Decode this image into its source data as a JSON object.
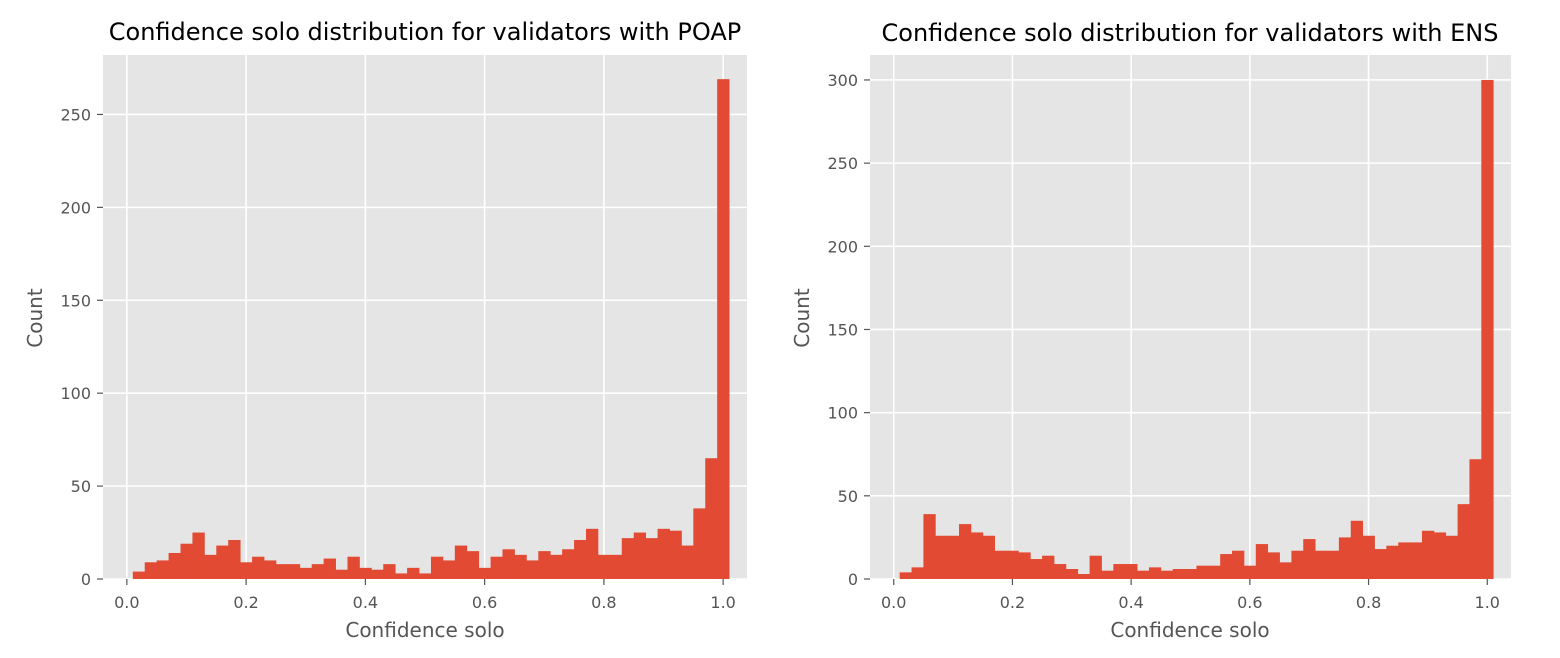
{
  "chart_data": [
    {
      "type": "bar",
      "title": "Confidence solo distribution for validators with POAP",
      "xlabel": "Confidence solo",
      "ylabel": "Count",
      "xlim": [
        -0.04,
        1.04
      ],
      "ylim": [
        0,
        282
      ],
      "xticks": [
        0.0,
        0.2,
        0.4,
        0.6,
        0.8,
        1.0
      ],
      "xtick_labels": [
        "0.0",
        "0.2",
        "0.4",
        "0.6",
        "0.8",
        "1.0"
      ],
      "yticks": [
        0,
        50,
        100,
        150,
        200,
        250
      ],
      "ytick_labels": [
        "0",
        "50",
        "100",
        "150",
        "200",
        "250"
      ],
      "grid": true,
      "bar_color": "#E24A33",
      "bg_color": "#E5E5E5",
      "bin_start": 0.01,
      "bin_width": 0.02,
      "values": [
        4,
        9,
        10,
        14,
        19,
        25,
        13,
        18,
        21,
        9,
        12,
        10,
        8,
        8,
        6,
        8,
        11,
        5,
        12,
        6,
        5,
        8,
        3,
        6,
        3,
        12,
        10,
        18,
        15,
        6,
        12,
        16,
        13,
        10,
        15,
        13,
        16,
        21,
        27,
        13,
        13,
        22,
        25,
        22,
        27,
        26,
        18,
        38,
        65,
        269
      ]
    },
    {
      "type": "bar",
      "title": "Confidence solo distribution for validators with ENS",
      "xlabel": "Confidence solo",
      "ylabel": "Count",
      "xlim": [
        -0.04,
        1.04
      ],
      "ylim": [
        0,
        315
      ],
      "xticks": [
        0.0,
        0.2,
        0.4,
        0.6,
        0.8,
        1.0
      ],
      "xtick_labels": [
        "0.0",
        "0.2",
        "0.4",
        "0.6",
        "0.8",
        "1.0"
      ],
      "yticks": [
        0,
        50,
        100,
        150,
        200,
        250,
        300
      ],
      "ytick_labels": [
        "0",
        "50",
        "100",
        "150",
        "200",
        "250",
        "300"
      ],
      "grid": true,
      "bar_color": "#E24A33",
      "bg_color": "#E5E5E5",
      "bin_start": 0.01,
      "bin_width": 0.02,
      "values": [
        4,
        7,
        39,
        26,
        26,
        33,
        28,
        26,
        17,
        17,
        16,
        12,
        14,
        9,
        6,
        3,
        14,
        5,
        9,
        9,
        5,
        7,
        5,
        6,
        6,
        8,
        8,
        15,
        17,
        8,
        21,
        16,
        10,
        17,
        24,
        17,
        17,
        25,
        35,
        26,
        18,
        20,
        22,
        22,
        29,
        28,
        26,
        45,
        72,
        300
      ]
    }
  ]
}
